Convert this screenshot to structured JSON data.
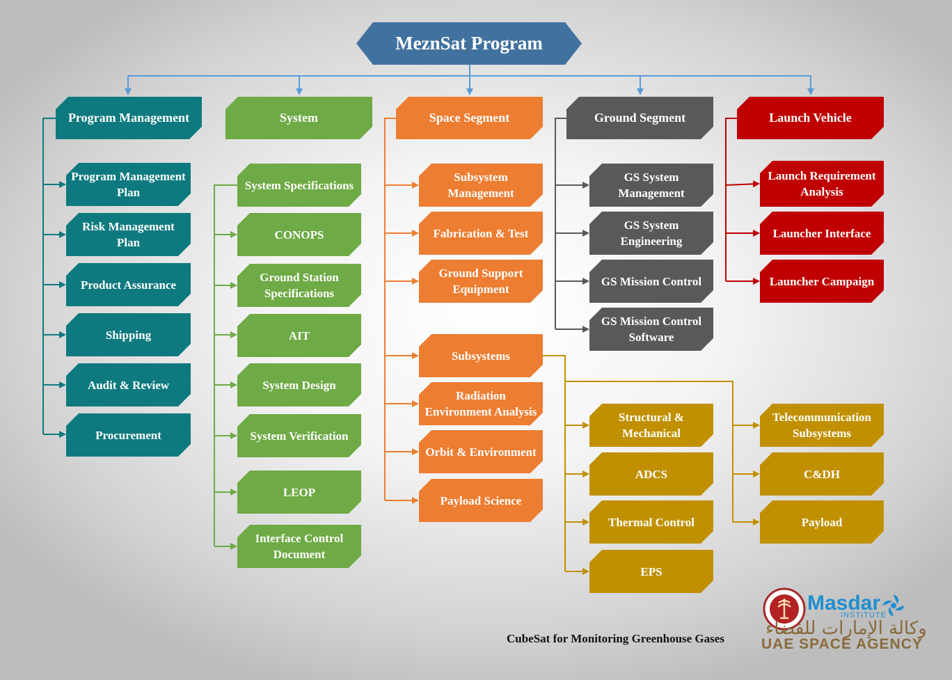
{
  "title": "MeznSat Program",
  "caption": "CubeSat for Monitoring Greenhouse Gases",
  "logos": {
    "masdar": "Masdar",
    "institute": "INSTITUTE",
    "arabic": "وكالة الإمارات للفضاء",
    "agency": "UAE SPACE AGENCY"
  },
  "colors": {
    "title": "#41729f",
    "program_management": "#0e7a7f",
    "system": "#6eaa45",
    "space_segment": "#ed7d31",
    "ground_segment": "#595959",
    "launch_vehicle": "#c00000",
    "subsystems": "#c19001",
    "connector_blue": "#5b9bd5"
  },
  "branches": {
    "program_management": {
      "label": "Program Management",
      "children": [
        "Program Management Plan",
        "Risk Management Plan",
        "Product Assurance",
        "Shipping",
        "Audit & Review",
        "Procurement"
      ]
    },
    "system": {
      "label": "System",
      "children": [
        "System Specifications",
        "CONOPS",
        "Ground Station Specifications",
        "AIT",
        "System Design",
        "System Verification",
        "LEOP",
        "Interface Control Document"
      ]
    },
    "space_segment": {
      "label": "Space Segment",
      "children": [
        "Subsystem Management",
        "Fabrication & Test",
        "Ground Support Equipment",
        "Subsystems",
        "Radiation Environment Analysis",
        "Orbit & Environment",
        "Payload Science"
      ]
    },
    "ground_segment": {
      "label": "Ground Segment",
      "children": [
        "GS System Management",
        "GS System Engineering",
        "GS Mission Control",
        "GS Mission Control Software"
      ]
    },
    "launch_vehicle": {
      "label": "Launch Vehicle",
      "children": [
        "Launch Requirement Analysis",
        "Launcher Interface",
        "Launcher Campaign"
      ]
    },
    "subsystems": {
      "left": [
        "Structural & Mechanical",
        "ADCS",
        "Thermal Control",
        "EPS"
      ],
      "right": [
        "Telecommunication Subsystems",
        "C&DH",
        "Payload"
      ]
    }
  }
}
